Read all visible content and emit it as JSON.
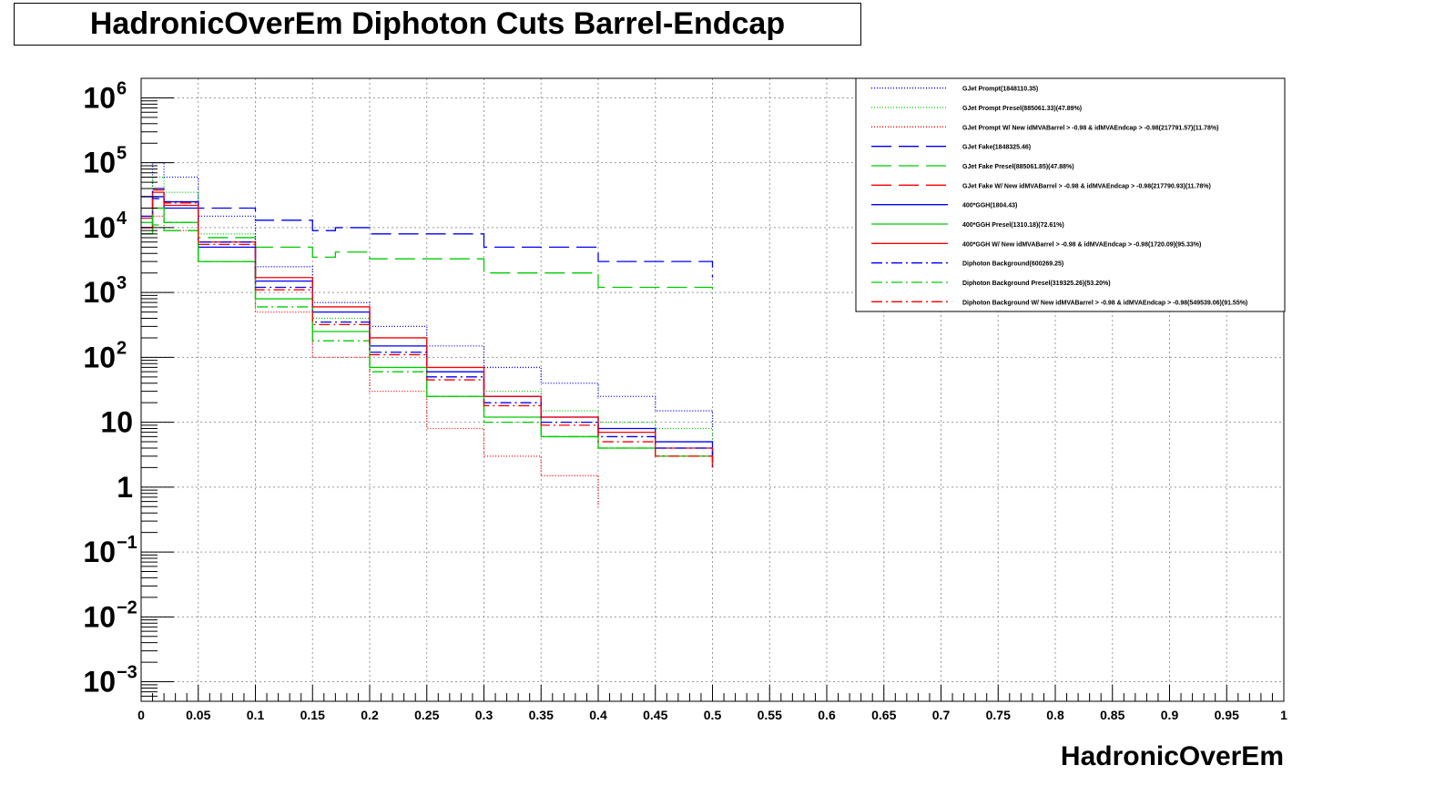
{
  "chart_data": {
    "type": "line",
    "title": "HadronicOverEm Diphoton Cuts Barrel-Endcap",
    "xlabel": "HadronicOverEm",
    "ylabel": "",
    "xlim": [
      0,
      1
    ],
    "ylim": [
      0.0005,
      2000000
    ],
    "yscale": "log",
    "grid": true,
    "legend_position": "top-right",
    "x_ticks": [
      "0",
      "0.05",
      "0.1",
      "0.15",
      "0.2",
      "0.25",
      "0.3",
      "0.35",
      "0.4",
      "0.45",
      "0.5",
      "0.55",
      "0.6",
      "0.65",
      "0.7",
      "0.75",
      "0.8",
      "0.85",
      "0.9",
      "0.95",
      "1"
    ],
    "y_ticks": [
      {
        "value": 0.001,
        "label": "10",
        "exp": "−3"
      },
      {
        "value": 0.01,
        "label": "10",
        "exp": "−2"
      },
      {
        "value": 0.1,
        "label": "10",
        "exp": "−1"
      },
      {
        "value": 1,
        "label": "1",
        "exp": ""
      },
      {
        "value": 10,
        "label": "10",
        "exp": ""
      },
      {
        "value": 100,
        "label": "10",
        "exp": "2"
      },
      {
        "value": 1000,
        "label": "10",
        "exp": "3"
      },
      {
        "value": 10000,
        "label": "10",
        "exp": "4"
      },
      {
        "value": 100000,
        "label": "10",
        "exp": "5"
      },
      {
        "value": 1000000,
        "label": "10",
        "exp": "6"
      }
    ],
    "series": [
      {
        "name": "GJet Prompt(1848110.35)",
        "color": "#0000ff",
        "style": "dotted",
        "x": [
          0.0,
          0.01,
          0.02,
          0.05,
          0.1,
          0.15,
          0.2,
          0.25,
          0.3,
          0.35,
          0.4,
          0.45,
          0.5
        ],
        "y": [
          30000,
          100000,
          60000,
          15000,
          2500,
          700,
          300,
          150,
          70,
          40,
          25,
          15,
          8
        ]
      },
      {
        "name": "GJet Prompt Presel(885061.33)(47.89%)",
        "color": "#00cc00",
        "style": "dotted",
        "x": [
          0.0,
          0.01,
          0.02,
          0.05,
          0.1,
          0.15,
          0.2,
          0.25,
          0.3,
          0.35,
          0.4,
          0.45,
          0.5
        ],
        "y": [
          20000,
          60000,
          35000,
          8000,
          1500,
          400,
          150,
          60,
          30,
          15,
          10,
          8,
          5
        ]
      },
      {
        "name": "GJet Prompt W/ New idMVABarrel > -0.98 & idMVAEndcap > -0.98(217791.57)(11.78%)",
        "color": "#ff0000",
        "style": "dotted",
        "x": [
          0.0,
          0.01,
          0.02,
          0.05,
          0.1,
          0.15,
          0.2,
          0.25,
          0.3,
          0.35,
          0.4
        ],
        "y": [
          8000,
          15000,
          9000,
          3000,
          500,
          100,
          30,
          8,
          3,
          1.5,
          0.5
        ]
      },
      {
        "name": "GJet Fake(1848325.46)",
        "color": "#0000ff",
        "style": "longdash",
        "x": [
          0.0,
          0.01,
          0.02,
          0.05,
          0.1,
          0.15,
          0.17,
          0.2,
          0.3,
          0.4,
          0.5
        ],
        "y": [
          30000,
          28000,
          25000,
          20000,
          13000,
          9000,
          10000,
          8000,
          5000,
          3000,
          1700
        ]
      },
      {
        "name": "GJet Fake Presel(885061.85)(47.88%)",
        "color": "#00cc00",
        "style": "longdash",
        "x": [
          0.0,
          0.01,
          0.02,
          0.05,
          0.1,
          0.15,
          0.17,
          0.2,
          0.3,
          0.4,
          0.5
        ],
        "y": [
          12000,
          11000,
          9000,
          7000,
          5000,
          3500,
          4200,
          3300,
          2000,
          1200,
          900
        ]
      },
      {
        "name": "GJet Fake W/ New idMVABarrel > -0.98 & idMVAEndcap > -0.98(217790.93)(11.78%)",
        "color": "#ff0000",
        "style": "longdash",
        "x": [],
        "y": []
      },
      {
        "name": "400*GGH(1804.43)",
        "color": "#0000ff",
        "style": "solid",
        "x": [
          0.0,
          0.01,
          0.02,
          0.05,
          0.1,
          0.15,
          0.2,
          0.25,
          0.3,
          0.35,
          0.4,
          0.45,
          0.5
        ],
        "y": [
          10000,
          30000,
          20000,
          5000,
          1500,
          500,
          150,
          60,
          25,
          12,
          8,
          5,
          3
        ]
      },
      {
        "name": "400*GGH Presel(1310.18)(72.61%)",
        "color": "#00cc00",
        "style": "solid",
        "x": [
          0.0,
          0.01,
          0.02,
          0.05,
          0.1,
          0.15,
          0.2,
          0.25,
          0.3,
          0.35,
          0.4,
          0.45,
          0.5
        ],
        "y": [
          8000,
          20000,
          12000,
          3000,
          800,
          250,
          70,
          25,
          12,
          6,
          4,
          3,
          2
        ]
      },
      {
        "name": "400*GGH W/ New idMVABarrel > -0.98 & idMVAEndcap > -0.98(1720.09)(95.33%)",
        "color": "#ff0000",
        "style": "solid",
        "x": [
          0.0,
          0.01,
          0.02,
          0.05,
          0.1,
          0.15,
          0.2,
          0.25,
          0.3,
          0.35,
          0.4,
          0.45,
          0.5
        ],
        "y": [
          10000,
          35000,
          22000,
          6000,
          1700,
          600,
          200,
          70,
          25,
          12,
          7,
          4,
          2
        ]
      },
      {
        "name": "Diphoton Background(600269.25)",
        "color": "#0000ff",
        "style": "dashdot",
        "x": [
          0.0,
          0.01,
          0.02,
          0.05,
          0.1,
          0.15,
          0.2,
          0.25,
          0.3,
          0.35,
          0.4,
          0.45,
          0.5
        ],
        "y": [
          15000,
          40000,
          25000,
          6000,
          1200,
          350,
          120,
          50,
          20,
          10,
          6,
          4,
          2
        ]
      },
      {
        "name": "Diphoton Background Presel(319325.26)(53.20%)",
        "color": "#00cc00",
        "style": "dashdot",
        "x": [
          0.0,
          0.01,
          0.02,
          0.05,
          0.1,
          0.15,
          0.2,
          0.25,
          0.3,
          0.35,
          0.4,
          0.45,
          0.5
        ],
        "y": [
          8000,
          20000,
          12000,
          3000,
          600,
          180,
          60,
          25,
          10,
          6,
          4,
          3,
          2
        ]
      },
      {
        "name": "Diphoton Background W/ New idMVABarrel > -0.98 & idMVAEndcap > -0.98(549539.06)(91.55%)",
        "color": "#ff0000",
        "style": "dashdot",
        "x": [
          0.0,
          0.01,
          0.02,
          0.05,
          0.1,
          0.15,
          0.2,
          0.25,
          0.3,
          0.35,
          0.4,
          0.45,
          0.5
        ],
        "y": [
          14000,
          38000,
          24000,
          5500,
          1100,
          320,
          110,
          45,
          18,
          9,
          5,
          3,
          2
        ]
      }
    ]
  }
}
